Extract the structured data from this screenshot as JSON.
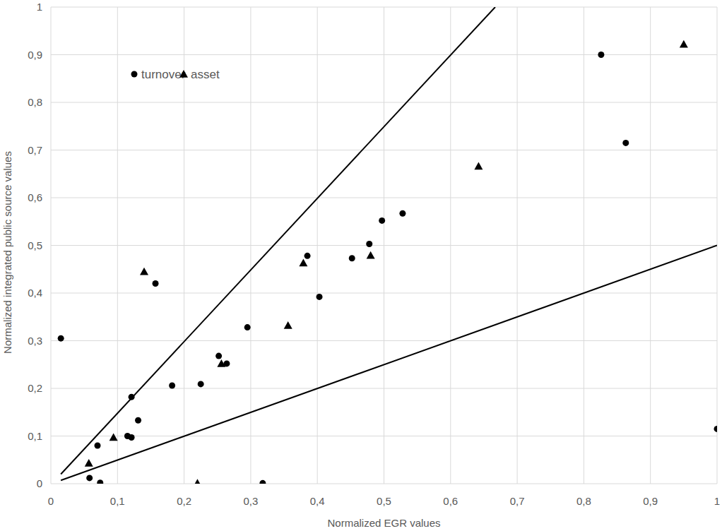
{
  "chart_data": {
    "type": "scatter",
    "x_label": "Normalized EGR values",
    "y_label": "Normalized integrated public source values",
    "xlim": [
      0,
      1
    ],
    "ylim": [
      0,
      1
    ],
    "xticks": [
      0,
      {
        "value": 0.1,
        "label": "0,1"
      },
      {
        "value": 0.2,
        "label": "0,2"
      },
      {
        "value": 0.3,
        "label": "0,3"
      },
      {
        "value": 0.4,
        "label": "0,4"
      },
      {
        "value": 0.5,
        "label": "0,5"
      },
      {
        "value": 0.6,
        "label": "0,6"
      },
      {
        "value": 0.7,
        "label": "0,7"
      },
      {
        "value": 0.8,
        "label": "0,8"
      },
      {
        "value": 0.9,
        "label": "0,9"
      },
      1
    ],
    "yticks": [
      0,
      {
        "value": 0.1,
        "label": "0,1"
      },
      {
        "value": 0.2,
        "label": "0,2"
      },
      {
        "value": 0.3,
        "label": "0,3"
      },
      {
        "value": 0.4,
        "label": "0,4"
      },
      {
        "value": 0.5,
        "label": "0,5"
      },
      {
        "value": 0.6,
        "label": "0,6"
      },
      {
        "value": 0.7,
        "label": "0,7"
      },
      {
        "value": 0.8,
        "label": "0,8"
      },
      {
        "value": 0.9,
        "label": "0,9"
      },
      1
    ],
    "grid": true,
    "legend": "top-left",
    "series": [
      {
        "name": "turnover",
        "color": "#000000",
        "marker": "circle",
        "x": [
          0.015,
          0.058,
          0.07,
          0.074,
          0.115,
          0.121,
          0.121,
          0.131,
          0.157,
          0.182,
          0.225,
          0.252,
          0.264,
          0.295,
          0.318,
          0.385,
          0.403,
          0.452,
          0.478,
          0.497,
          0.528,
          0.826,
          0.863,
          1.0
        ],
        "values": [
          0.305,
          0.012,
          0.08,
          0.002,
          0.1,
          0.097,
          0.182,
          0.133,
          0.42,
          0.206,
          0.209,
          0.268,
          0.252,
          0.328,
          0.001,
          0.478,
          0.392,
          0.473,
          0.503,
          0.552,
          0.567,
          0.9,
          0.715,
          0.115
        ]
      },
      {
        "name": "asset",
        "color": "#000000",
        "marker": "triangle",
        "x": [
          0.057,
          0.094,
          0.14,
          0.22,
          0.256,
          0.356,
          0.379,
          0.48,
          0.642,
          0.95
        ],
        "values": [
          0.043,
          0.097,
          0.445,
          0.001,
          0.252,
          0.332,
          0.463,
          0.479,
          0.666,
          0.922
        ]
      },
      {
        "type": "line",
        "color": "#000000",
        "line_style": "solid",
        "x": [
          0.015,
          0.667
        ],
        "values": [
          0.02,
          1.0
        ]
      },
      {
        "type": "line",
        "color": "#000000",
        "line_style": "solid",
        "x": [
          0.015,
          1.0
        ],
        "values": [
          0.007,
          0.5
        ]
      }
    ]
  }
}
